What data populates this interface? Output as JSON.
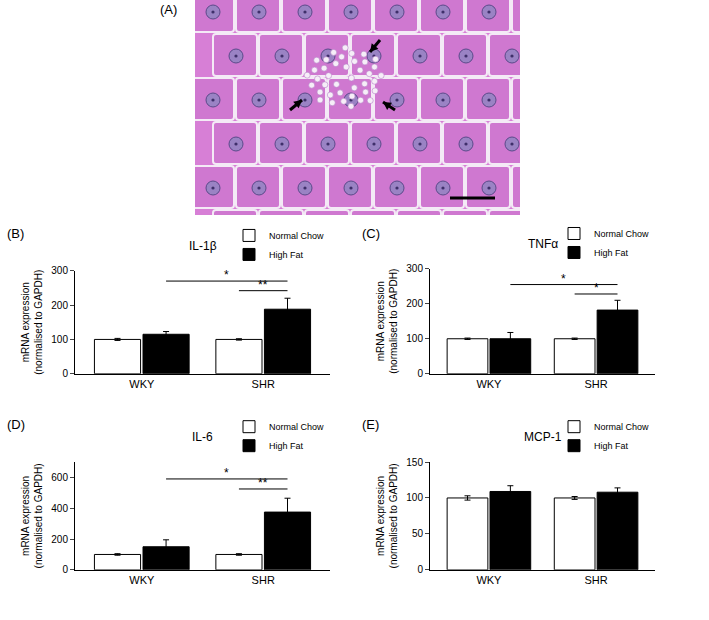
{
  "panel_a": {
    "label": "(A)"
  },
  "chart_data": [
    {
      "panel": "(B)",
      "type": "bar",
      "title": "IL-1β",
      "y_label": "mRNA expression\n(normalised to GAPDH)",
      "categories": [
        "WKY",
        "SHR"
      ],
      "series": [
        {
          "name": "Normal Chow",
          "color": "#ffffff",
          "values": [
            100,
            100
          ],
          "errors": [
            3,
            2
          ]
        },
        {
          "name": "High Fat",
          "color": "#000000",
          "values": [
            115,
            188
          ],
          "errors": [
            8,
            32
          ]
        }
      ],
      "ylim": [
        0,
        300
      ],
      "yticks": [
        0,
        100,
        200,
        300
      ],
      "legend": "upper right",
      "significance": [
        {
          "label": "*",
          "y": 270,
          "from": [
            "WKY",
            "High Fat"
          ],
          "to": [
            "SHR",
            "High Fat"
          ]
        },
        {
          "label": "**",
          "y": 242,
          "from": [
            "SHR",
            "Normal Chow"
          ],
          "to": [
            "SHR",
            "High Fat"
          ]
        }
      ]
    },
    {
      "panel": "(C)",
      "type": "bar",
      "title": "TNFα",
      "y_label": "mRNA expression\n(normalised to GAPDH)",
      "categories": [
        "WKY",
        "SHR"
      ],
      "series": [
        {
          "name": "Normal Chow",
          "color": "#ffffff",
          "values": [
            100,
            100
          ],
          "errors": [
            2,
            2
          ]
        },
        {
          "name": "High Fat",
          "color": "#000000",
          "values": [
            100,
            182
          ],
          "errors": [
            18,
            28
          ]
        }
      ],
      "ylim": [
        0,
        300
      ],
      "yticks": [
        0,
        100,
        200,
        300
      ],
      "legend": "upper right",
      "significance": [
        {
          "label": "*",
          "y": 255,
          "from": [
            "WKY",
            "High Fat"
          ],
          "to": [
            "SHR",
            "High Fat"
          ]
        },
        {
          "label": "*",
          "y": 228,
          "from": [
            "SHR",
            "Normal Chow"
          ],
          "to": [
            "SHR",
            "High Fat"
          ]
        }
      ]
    },
    {
      "panel": "(D)",
      "type": "bar",
      "title": "IL-6",
      "y_label": "mRNA expression\n(normalised to GAPDH)",
      "categories": [
        "WKY",
        "SHR"
      ],
      "series": [
        {
          "name": "Normal Chow",
          "color": "#ffffff",
          "values": [
            100,
            100
          ],
          "errors": [
            5,
            5
          ]
        },
        {
          "name": "High Fat",
          "color": "#000000",
          "values": [
            150,
            375
          ],
          "errors": [
            45,
            90
          ]
        }
      ],
      "ylim": [
        0,
        700
      ],
      "yticks": [
        0,
        200,
        400,
        600
      ],
      "legend": "upper right",
      "significance": [
        {
          "label": "*",
          "y": 590,
          "from": [
            "WKY",
            "High Fat"
          ],
          "to": [
            "SHR",
            "High Fat"
          ]
        },
        {
          "label": "**",
          "y": 525,
          "from": [
            "SHR",
            "Normal Chow"
          ],
          "to": [
            "SHR",
            "High Fat"
          ]
        }
      ]
    },
    {
      "panel": "(E)",
      "type": "bar",
      "title": "MCP-1",
      "y_label": "mRNA expression\n(normalised to GAPDH)",
      "categories": [
        "WKY",
        "SHR"
      ],
      "series": [
        {
          "name": "Normal Chow",
          "color": "#ffffff",
          "values": [
            100,
            100
          ],
          "errors": [
            3,
            2
          ]
        },
        {
          "name": "High Fat",
          "color": "#000000",
          "values": [
            109,
            108
          ],
          "errors": [
            8,
            6
          ]
        }
      ],
      "ylim": [
        0,
        150
      ],
      "yticks": [
        0,
        50,
        100,
        150
      ],
      "legend": "upper right"
    }
  ]
}
